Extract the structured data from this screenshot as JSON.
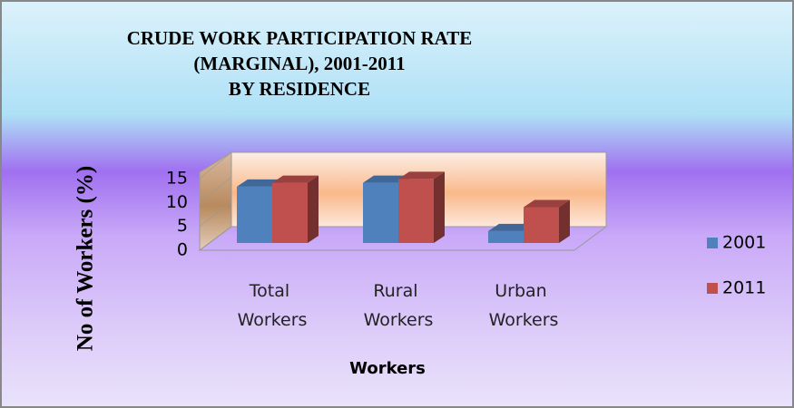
{
  "chart_data": {
    "type": "bar3d",
    "title": [
      "CRUDE WORK PARTICIPATION RATE",
      "(MARGINAL), 2001-2011",
      "BY RESIDENCE"
    ],
    "x_label": "Workers",
    "y_label": "No of Workers (%)",
    "categories": [
      "Total Workers",
      "Rural Workers",
      "Urban Workers"
    ],
    "series": [
      {
        "name": "2001",
        "color": "#4f81bd",
        "values": [
          11.8,
          12.6,
          2.5
        ]
      },
      {
        "name": "2011",
        "color": "#c0504d",
        "values": [
          12.6,
          13.4,
          7.5
        ]
      }
    ],
    "ylim": [
      0,
      15
    ],
    "yticks": [
      0,
      5,
      10,
      15
    ],
    "legend": "right"
  }
}
